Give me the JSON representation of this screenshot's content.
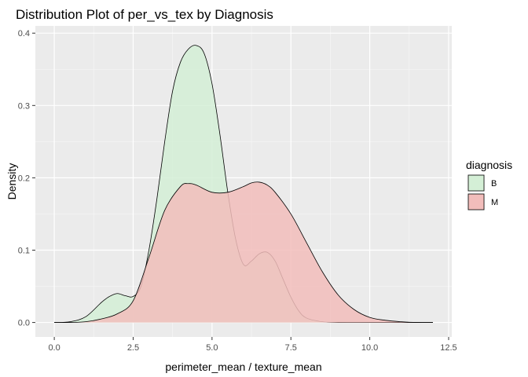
{
  "chart_data": {
    "type": "area",
    "title": "Distribution Plot of per_vs_tex by Diagnosis",
    "xlabel": "perimeter_mean / texture_mean",
    "ylabel": "Density",
    "xlim": [
      -0.6,
      12.6
    ],
    "ylim": [
      -0.02,
      0.41
    ],
    "x_ticks": [
      0,
      2.5,
      5,
      7.5,
      10,
      12.5
    ],
    "x_tick_labels": [
      "0.0",
      "2.5",
      "5.0",
      "7.5",
      "10.0",
      "12.5"
    ],
    "y_ticks": [
      0,
      0.1,
      0.2,
      0.3,
      0.4
    ],
    "y_tick_labels": [
      "0.0",
      "0.1",
      "0.2",
      "0.3",
      "0.4"
    ],
    "grid": true,
    "legend": {
      "title": "diagnosis",
      "position": "right"
    },
    "series": [
      {
        "name": "B",
        "color": "#d4efd6",
        "x": [
          0,
          0.5,
          1.0,
          1.5,
          1.75,
          2.0,
          2.25,
          2.5,
          2.75,
          3.0,
          3.25,
          3.5,
          3.75,
          4.0,
          4.25,
          4.5,
          4.75,
          5.0,
          5.25,
          5.5,
          5.75,
          6.0,
          6.25,
          6.5,
          6.75,
          7.0,
          7.25,
          7.5,
          7.75,
          8.0,
          8.5,
          9.0,
          10.0,
          11.0,
          12.0
        ],
        "y": [
          0,
          0.001,
          0.008,
          0.028,
          0.036,
          0.04,
          0.037,
          0.036,
          0.05,
          0.1,
          0.17,
          0.25,
          0.32,
          0.36,
          0.378,
          0.383,
          0.372,
          0.33,
          0.26,
          0.18,
          0.115,
          0.08,
          0.085,
          0.095,
          0.097,
          0.085,
          0.06,
          0.035,
          0.016,
          0.006,
          0.001,
          0,
          0,
          0,
          0
        ]
      },
      {
        "name": "M",
        "color": "#f2bdbb",
        "x": [
          0,
          0.5,
          1.0,
          1.5,
          2.0,
          2.5,
          3.0,
          3.5,
          4.0,
          4.25,
          4.5,
          5.0,
          5.5,
          6.0,
          6.25,
          6.5,
          6.75,
          7.0,
          7.5,
          8.0,
          8.5,
          9.0,
          9.5,
          10.0,
          10.5,
          11.0,
          11.5,
          12.0
        ],
        "y": [
          0,
          0,
          0.001,
          0.005,
          0.012,
          0.03,
          0.09,
          0.155,
          0.188,
          0.192,
          0.19,
          0.18,
          0.18,
          0.188,
          0.193,
          0.194,
          0.19,
          0.18,
          0.15,
          0.11,
          0.07,
          0.038,
          0.018,
          0.007,
          0.003,
          0.001,
          0,
          0
        ]
      }
    ]
  }
}
